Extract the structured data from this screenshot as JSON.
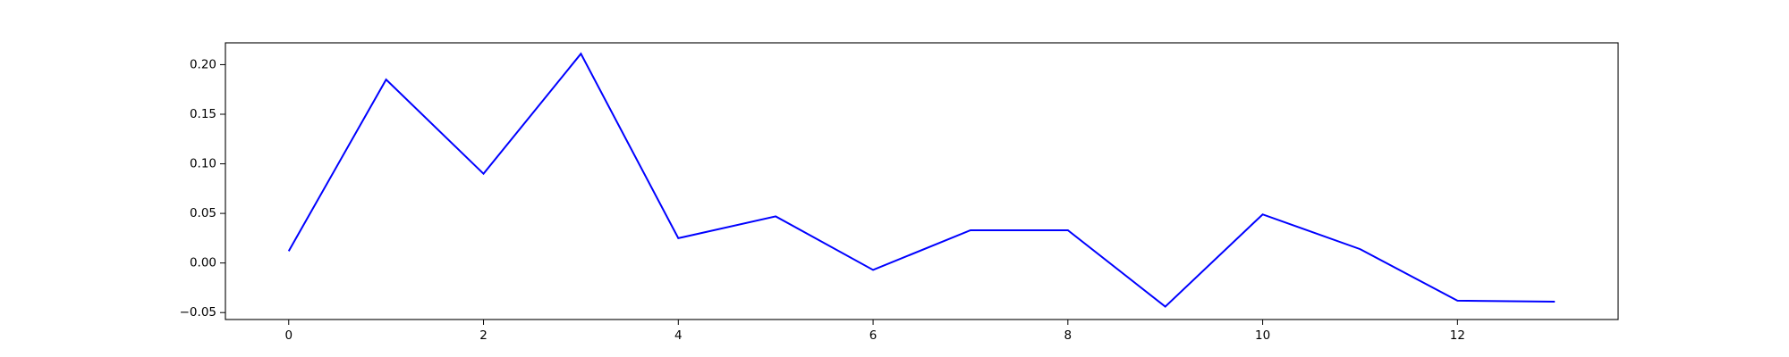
{
  "chart_data": {
    "type": "line",
    "title": "",
    "xlabel": "",
    "ylabel": "",
    "xlim": [
      -0.65,
      13.65
    ],
    "ylim": [
      -0.057,
      0.222
    ],
    "grid": false,
    "x_ticks": [
      0,
      2,
      4,
      6,
      8,
      10,
      12
    ],
    "x_tick_labels": [
      "0",
      "2",
      "4",
      "6",
      "8",
      "10",
      "12"
    ],
    "y_ticks": [
      -0.05,
      0.0,
      0.05,
      0.1,
      0.15,
      0.2
    ],
    "y_tick_labels": [
      "−0.05",
      "0.00",
      "0.05",
      "0.10",
      "0.15",
      "0.20"
    ],
    "series": [
      {
        "color": "#0000ff",
        "x": [
          0,
          1,
          2,
          3,
          4,
          5,
          6,
          7,
          8,
          9,
          10,
          11,
          12,
          13
        ],
        "values": [
          0.012,
          0.185,
          0.09,
          0.211,
          0.025,
          0.047,
          -0.007,
          0.033,
          0.033,
          -0.044,
          0.049,
          0.014,
          -0.038,
          -0.039
        ]
      }
    ]
  }
}
